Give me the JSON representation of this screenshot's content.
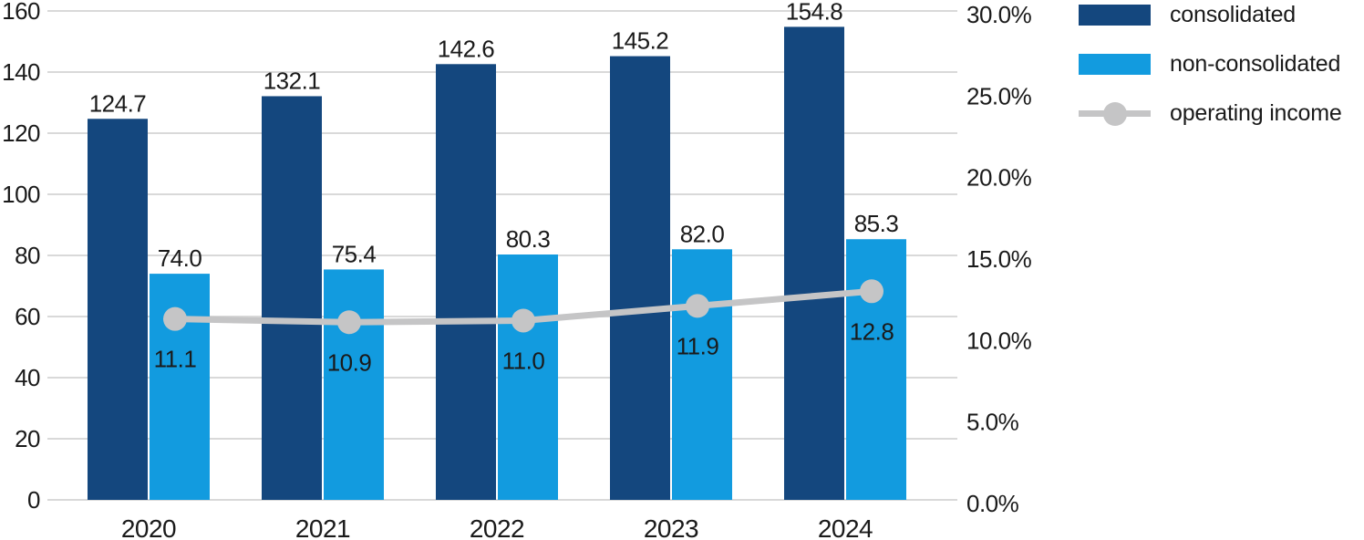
{
  "chart_data": {
    "type": "bar",
    "subtype": "grouped-bar-with-line-combo",
    "categories": [
      "2020",
      "2021",
      "2022",
      "2023",
      "2024"
    ],
    "series": [
      {
        "name": "consolidated",
        "type": "bar",
        "color": "#14477e",
        "values": [
          124.7,
          132.1,
          142.6,
          145.2,
          154.8
        ],
        "axis": "left"
      },
      {
        "name": "non-consolidated",
        "type": "bar",
        "color": "#129bdf",
        "values": [
          74.0,
          75.4,
          80.3,
          82.0,
          85.3
        ],
        "axis": "left"
      },
      {
        "name": "operating income",
        "type": "line",
        "color": "#c5c5c6",
        "values": [
          11.1,
          10.9,
          11.0,
          11.9,
          12.8
        ],
        "axis": "right"
      }
    ],
    "bar_data_labels": [
      [
        "124.7",
        "132.1",
        "142.6",
        "145.2",
        "154.8"
      ],
      [
        "74.0",
        "75.4",
        "80.3",
        "82.0",
        "85.3"
      ]
    ],
    "line_data_labels": [
      "11.1",
      "10.9",
      "11.0",
      "11.9",
      "12.8"
    ],
    "left_axis": {
      "min": 0,
      "max": 160,
      "step": 20,
      "ticks": [
        "0",
        "20",
        "40",
        "60",
        "80",
        "100",
        "120",
        "140",
        "160"
      ]
    },
    "right_axis": {
      "min": 0,
      "max": 30,
      "step": 5,
      "ticks": [
        "0.0%",
        "5.0%",
        "10.0%",
        "15.0%",
        "20.0%",
        "25.0%",
        "30.0%"
      ]
    },
    "grid": true,
    "legend_position": "top-right",
    "title": "",
    "xlabel": "",
    "ylabel": ""
  },
  "legend": {
    "items": [
      {
        "label": "consolidated",
        "color": "#14477e",
        "marker": "swatch"
      },
      {
        "label": "non-consolidated",
        "color": "#129bdf",
        "marker": "swatch"
      },
      {
        "label": "operating income",
        "color": "#c5c5c6",
        "marker": "line-dot"
      }
    ]
  },
  "colors": {
    "consolidated_bar": "#14477e",
    "non_consolidated_bar": "#129bdf",
    "line": "#c5c5c6",
    "gridline": "#d9d9d9",
    "text": "#1a1a1a",
    "bar_inner_label": "#ffffff",
    "background": "#ffffff"
  }
}
